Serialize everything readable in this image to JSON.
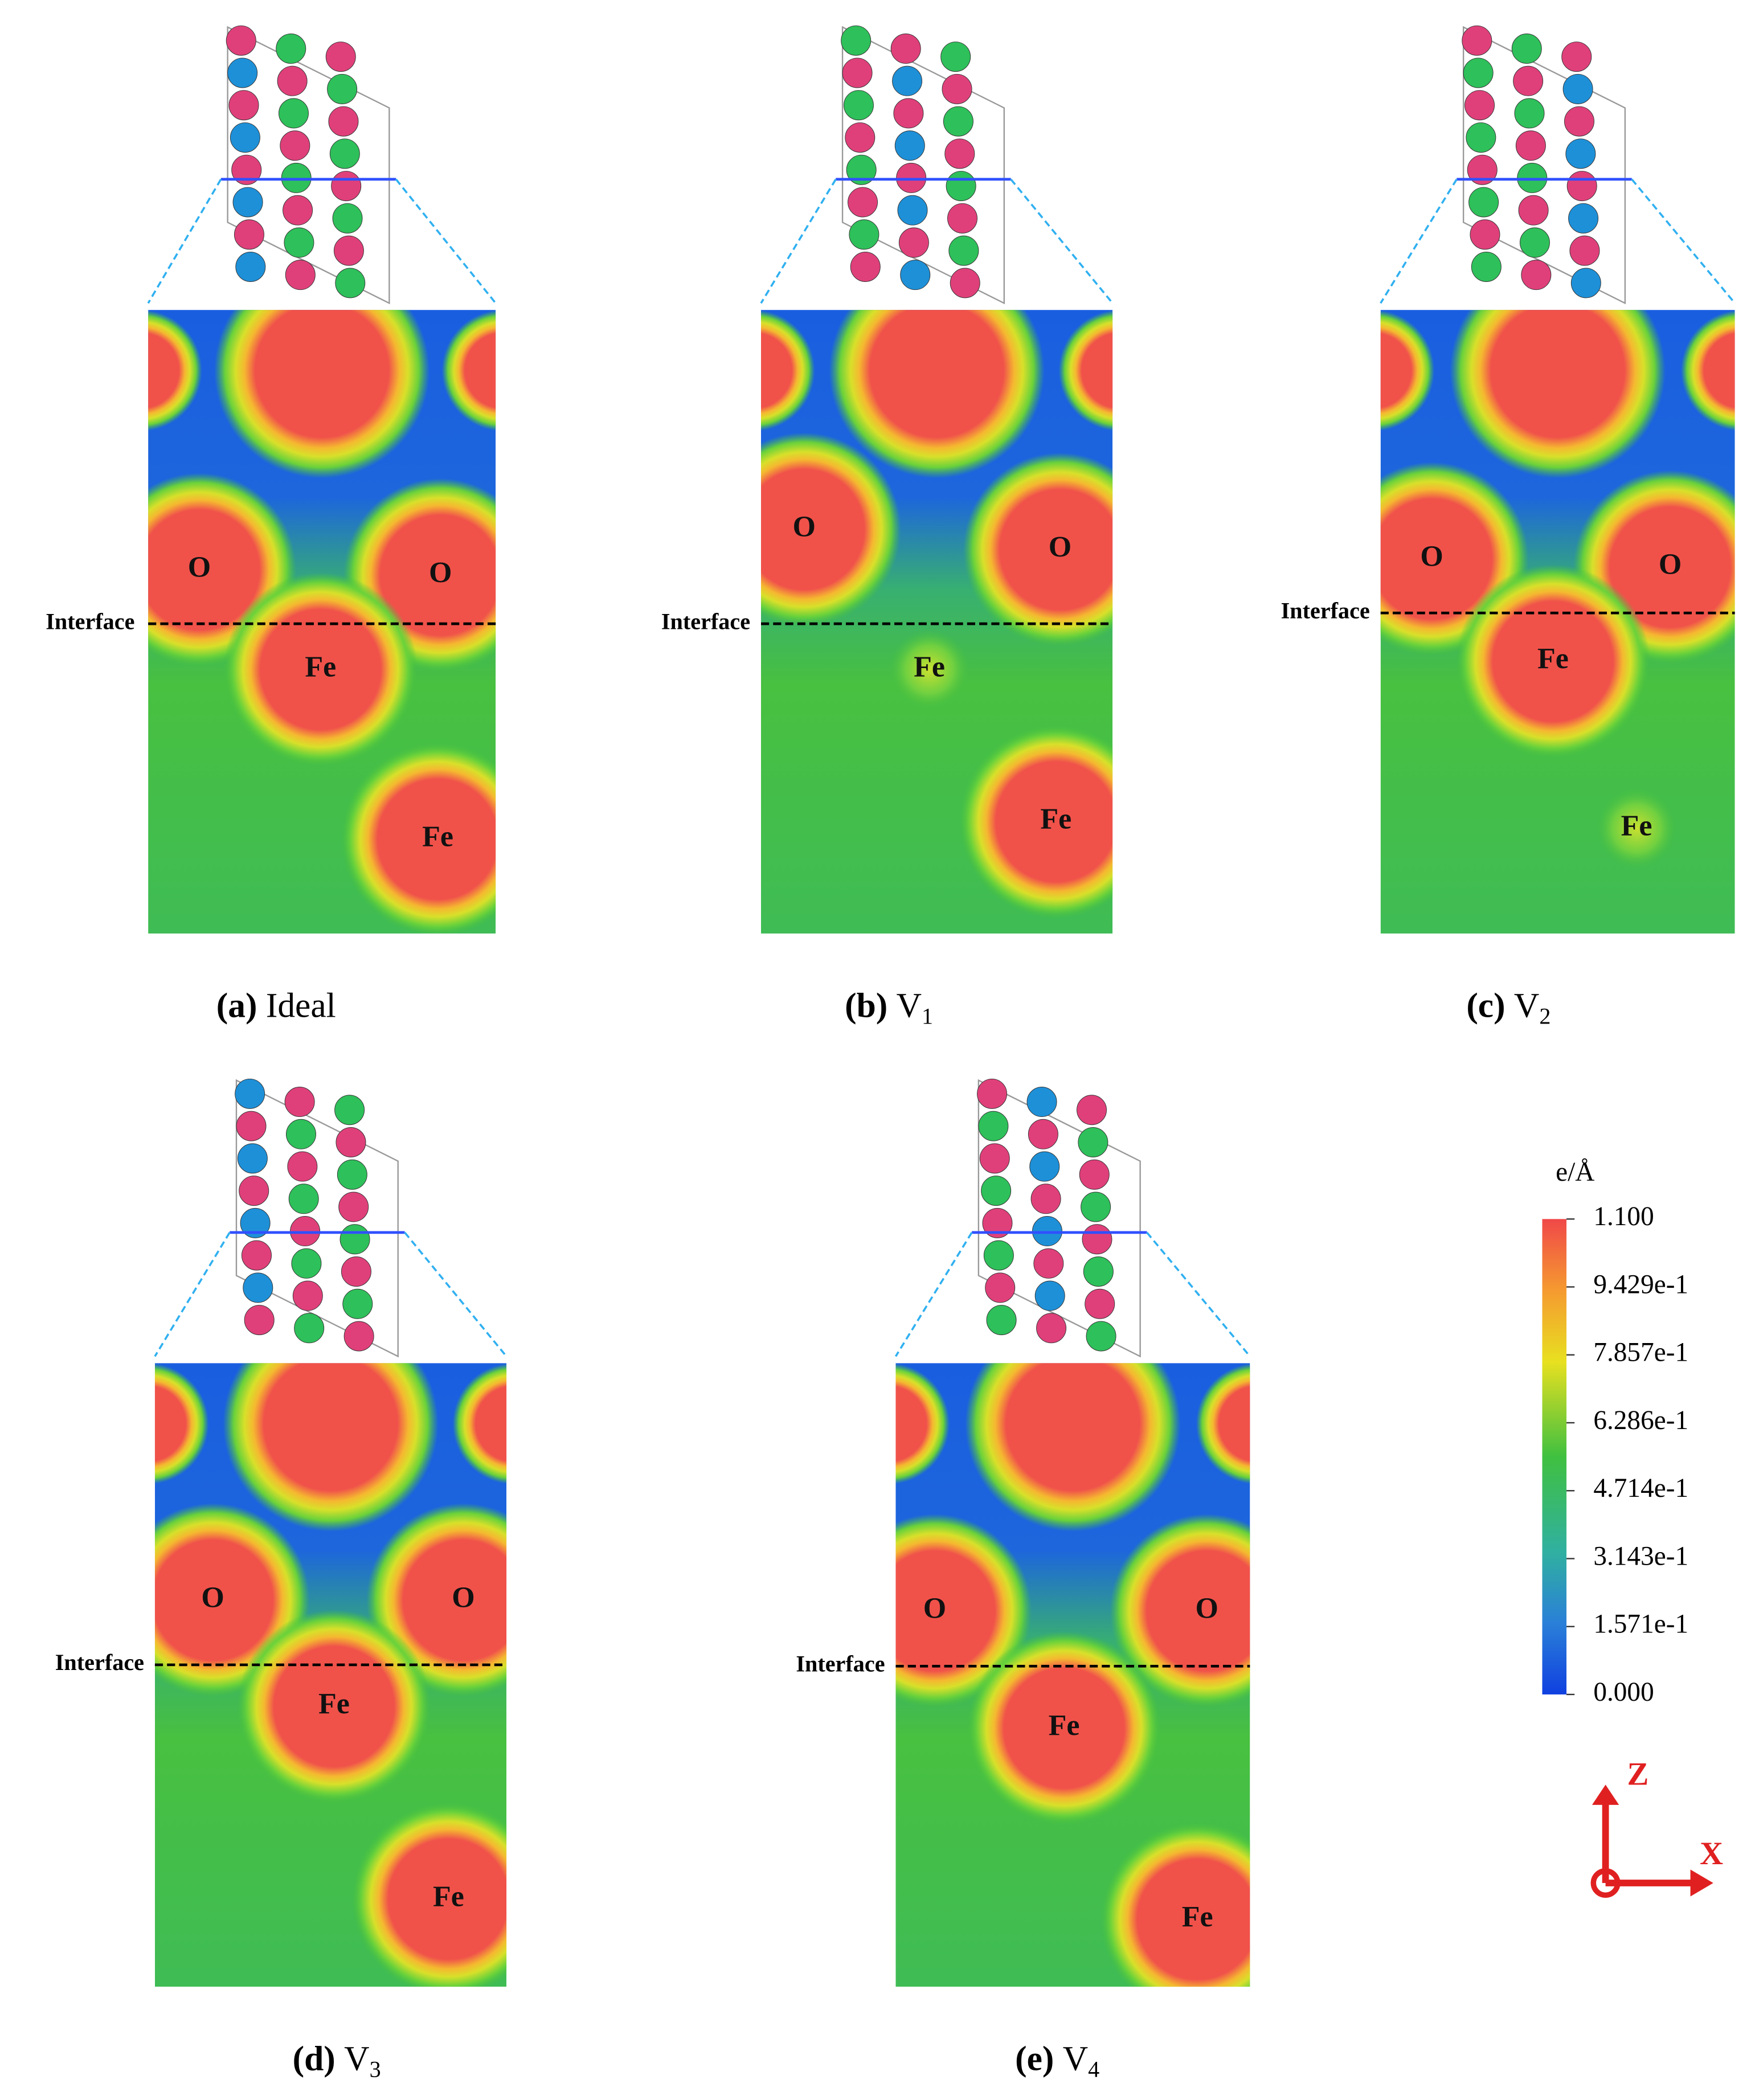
{
  "panels": [
    {
      "tag": "(a)",
      "name": "Ideal",
      "interface": "Interface",
      "atoms": [
        "O",
        "O",
        "Fe",
        "Fe"
      ]
    },
    {
      "tag": "(b)",
      "name": "V",
      "subscript": "1",
      "interface": "Interface",
      "atoms": [
        "O",
        "O",
        "Fe",
        "Fe"
      ]
    },
    {
      "tag": "(c)",
      "name": "V",
      "subscript": "2",
      "interface": "Interface",
      "atoms": [
        "O",
        "O",
        "Fe",
        "Fe"
      ]
    },
    {
      "tag": "(d)",
      "name": "V",
      "subscript": "3",
      "interface": "Interface",
      "atoms": [
        "O",
        "O",
        "Fe",
        "Fe"
      ]
    },
    {
      "tag": "(e)",
      "name": "V",
      "subscript": "4",
      "interface": "Interface",
      "atoms": [
        "O",
        "O",
        "Fe",
        "Fe"
      ]
    }
  ],
  "colorbar": {
    "unit": "e/Å",
    "ticks": [
      {
        "value": 1.1,
        "label": "1.100"
      },
      {
        "value": 0.9429,
        "label": "9.429e-1"
      },
      {
        "value": 0.7857,
        "label": "7.857e-1"
      },
      {
        "value": 0.6286,
        "label": "6.286e-1"
      },
      {
        "value": 0.4714,
        "label": "4.714e-1"
      },
      {
        "value": 0.3143,
        "label": "3.143e-1"
      },
      {
        "value": 0.1571,
        "label": "1.571e-1"
      },
      {
        "value": 0,
        "label": "0.000"
      }
    ]
  },
  "axes": {
    "z": "Z",
    "x": "X"
  }
}
